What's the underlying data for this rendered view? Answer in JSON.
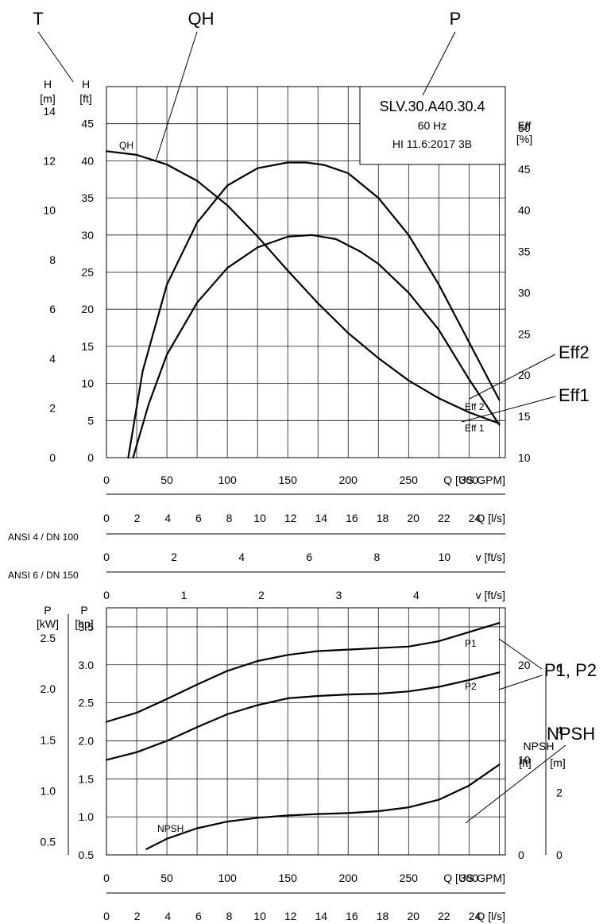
{
  "chart_data": [
    {
      "type": "line",
      "title": "SLV.30.A40.30.4",
      "subtitle": "60 Hz",
      "note": "HI 11.6:2017 3B",
      "callouts": [
        "T",
        "QH",
        "P",
        "Eff2",
        "Eff1"
      ],
      "xlabel": "Q [US GPM]",
      "xlim": [
        0,
        330
      ],
      "x_ticks": [
        0,
        50,
        100,
        150,
        200,
        250,
        300
      ],
      "y_axes": [
        {
          "label_top": "H",
          "unit": "[m]",
          "range": [
            0,
            15
          ],
          "ticks": [
            0,
            2,
            4,
            6,
            8,
            10,
            12,
            14
          ]
        },
        {
          "label_top": "H",
          "unit": "[ft]",
          "range": [
            0,
            50
          ],
          "ticks": [
            0,
            5,
            10,
            15,
            20,
            25,
            30,
            35,
            40,
            45
          ]
        },
        {
          "label_top": "Eff",
          "unit": "[%]",
          "range": [
            10,
            55
          ],
          "ticks": [
            10,
            15,
            20,
            25,
            30,
            35,
            40,
            45,
            50
          ]
        }
      ],
      "series": [
        {
          "name": "QH",
          "axis": "H [ft]",
          "x": [
            0,
            25,
            50,
            75,
            100,
            125,
            150,
            175,
            200,
            225,
            250,
            275,
            300,
            325
          ],
          "y": [
            41.3,
            40.8,
            39.5,
            37.3,
            34.0,
            29.8,
            25.2,
            20.8,
            16.8,
            13.4,
            10.4,
            8.0,
            6.1,
            4.6
          ]
        },
        {
          "name": "Eff 2",
          "axis": "Eff [%]",
          "x": [
            18,
            30,
            50,
            75,
            100,
            125,
            150,
            165,
            180,
            200,
            225,
            250,
            275,
            300,
            325
          ],
          "y": [
            10,
            20.5,
            31,
            38.5,
            43.0,
            45.1,
            45.8,
            45.8,
            45.5,
            44.5,
            41.5,
            37.0,
            31.0,
            24.0,
            17.0
          ]
        },
        {
          "name": "Eff 1",
          "axis": "Eff [%]",
          "x": [
            22,
            35,
            50,
            75,
            100,
            125,
            150,
            170,
            190,
            210,
            225,
            250,
            275,
            300,
            325
          ],
          "y": [
            10,
            16.5,
            22.5,
            28.8,
            33.0,
            35.5,
            36.8,
            37.0,
            36.5,
            35.0,
            33.5,
            30.0,
            25.5,
            19.5,
            14.0
          ]
        }
      ],
      "curve_labels": {
        "qh": "QH",
        "eff2": "Eff 2",
        "eff1": "Eff 1"
      },
      "grid": true
    },
    {
      "type": "table",
      "title": "Q [l/s]",
      "xlabel": "Q [l/s]",
      "range": [
        0,
        26
      ],
      "ticks": [
        0,
        2,
        4,
        6,
        8,
        10,
        12,
        14,
        16,
        18,
        20,
        22,
        24
      ]
    },
    {
      "type": "table",
      "title": "ANSI 4 / DN 100",
      "xlabel": "v [ft/s]",
      "range": [
        0,
        11.8
      ],
      "ticks": [
        0,
        2,
        4,
        6,
        8,
        10
      ]
    },
    {
      "type": "table",
      "title": "ANSI 6 / DN 150",
      "xlabel": "v [ft/s]",
      "range": [
        0,
        5.15
      ],
      "ticks": [
        0,
        1,
        2,
        3,
        4
      ]
    },
    {
      "type": "line",
      "callouts": [
        "P1, P2",
        "NPSH"
      ],
      "xlabel": "Q [US GPM]",
      "xlim": [
        0,
        330
      ],
      "x_ticks": [
        0,
        50,
        100,
        150,
        200,
        250,
        300
      ],
      "y_axes": [
        {
          "label_top": "P",
          "unit": "[kW]",
          "range": [
            0.373,
            2.796
          ],
          "ticks": [
            0.5,
            1.0,
            1.5,
            2.0,
            2.5
          ]
        },
        {
          "label_top": "P",
          "unit": "[hp]",
          "range": [
            0.5,
            3.75
          ],
          "ticks": [
            0.5,
            1.0,
            1.5,
            2.0,
            2.5,
            3.0,
            3.5
          ]
        },
        {
          "label_top": "NPSH",
          "unit": "[ft]",
          "range": [
            0,
            26
          ],
          "ticks": [
            0,
            10,
            20
          ]
        },
        {
          "label_top": "",
          "unit": "[m]",
          "range": [
            0,
            7
          ],
          "ticks": [
            0,
            2,
            4,
            6
          ]
        }
      ],
      "series": [
        {
          "name": "P1",
          "axis": "P [hp]",
          "x": [
            0,
            25,
            50,
            75,
            100,
            125,
            150,
            175,
            200,
            225,
            250,
            275,
            300,
            325
          ],
          "y": [
            2.25,
            2.37,
            2.55,
            2.74,
            2.92,
            3.05,
            3.13,
            3.18,
            3.2,
            3.22,
            3.24,
            3.31,
            3.43,
            3.55
          ]
        },
        {
          "name": "P2",
          "axis": "P [hp]",
          "x": [
            0,
            25,
            50,
            75,
            100,
            125,
            150,
            175,
            200,
            225,
            250,
            275,
            300,
            325
          ],
          "y": [
            1.75,
            1.85,
            2.0,
            2.18,
            2.35,
            2.47,
            2.56,
            2.59,
            2.61,
            2.62,
            2.65,
            2.71,
            2.8,
            2.9
          ]
        },
        {
          "name": "NPSH",
          "axis": "NPSH [ft]",
          "x": [
            33,
            50,
            75,
            100,
            125,
            150,
            175,
            200,
            225,
            250,
            275,
            300,
            325
          ],
          "y": [
            0.6,
            1.7,
            2.8,
            3.5,
            3.9,
            4.15,
            4.3,
            4.4,
            4.6,
            5.0,
            5.8,
            7.3,
            9.5
          ]
        }
      ],
      "curve_labels": {
        "p1": "P1",
        "p2": "P2",
        "npsh": "NPSH"
      },
      "grid": true
    },
    {
      "type": "table",
      "title": "Q [l/s]",
      "xlabel": "Q [l/s]",
      "range": [
        0,
        26
      ],
      "ticks": [
        0,
        2,
        4,
        6,
        8,
        10,
        12,
        14,
        16,
        18,
        20,
        22,
        24
      ]
    }
  ]
}
